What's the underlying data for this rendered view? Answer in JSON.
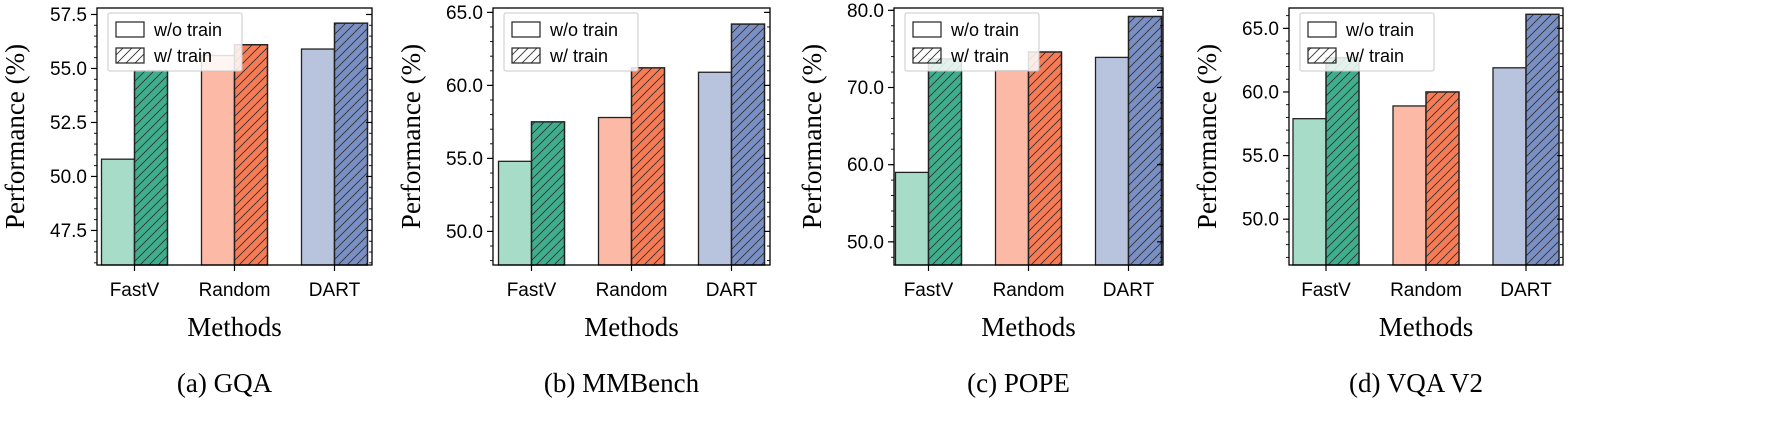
{
  "figure": {
    "categories": [
      "FastV",
      "Random",
      "DART"
    ],
    "legend": [
      "w/o train",
      "w/ train"
    ],
    "ylabel": "Performance (%)",
    "xlabel": "Methods",
    "colors": {
      "FastV": [
        "#a6dcc8",
        "#3fae8c"
      ],
      "Random": [
        "#fcb9a5",
        "#f77b55"
      ],
      "DART": [
        "#b8c3de",
        "#7a8fc4"
      ]
    },
    "legend_position": "upper left",
    "hatch_on_series": "w/ train"
  },
  "chart_data": [
    {
      "type": "bar",
      "caption": "(a) GQA",
      "categories": [
        "FastV",
        "Random",
        "DART"
      ],
      "series": [
        {
          "name": "w/o train",
          "values": [
            50.8,
            55.6,
            55.9
          ]
        },
        {
          "name": "w/ train",
          "values": [
            54.9,
            56.1,
            57.1
          ]
        }
      ],
      "xlabel": "Methods",
      "ylabel": "Performance (%)",
      "ylim": [
        45.9,
        57.8
      ],
      "yticks": [
        "47.5",
        "50.0",
        "52.5",
        "55.0",
        "57.5"
      ],
      "ytick_values": [
        47.5,
        50.0,
        52.5,
        55.0,
        57.5
      ],
      "minor_step": 0.5,
      "legend": "top-left"
    },
    {
      "type": "bar",
      "caption": "(b) MMBench",
      "categories": [
        "FastV",
        "Random",
        "DART"
      ],
      "series": [
        {
          "name": "w/o train",
          "values": [
            54.8,
            57.8,
            60.9
          ]
        },
        {
          "name": "w/ train",
          "values": [
            57.5,
            61.2,
            64.2
          ]
        }
      ],
      "xlabel": "Methods",
      "ylabel": "Performance (%)",
      "ylim": [
        47.7,
        65.3
      ],
      "yticks": [
        "50.0",
        "55.0",
        "60.0",
        "65.0"
      ],
      "ytick_values": [
        50.0,
        55.0,
        60.0,
        65.0
      ],
      "minor_step": 1,
      "legend": "top-left"
    },
    {
      "type": "bar",
      "caption": "(c) POPE",
      "categories": [
        "FastV",
        "Random",
        "DART"
      ],
      "series": [
        {
          "name": "w/o train",
          "values": [
            59.0,
            72.2,
            73.9
          ]
        },
        {
          "name": "w/ train",
          "values": [
            73.7,
            74.6,
            79.2
          ]
        }
      ],
      "xlabel": "Methods",
      "ylabel": "Performance (%)",
      "ylim": [
        47.0,
        80.3
      ],
      "yticks": [
        "50.0",
        "60.0",
        "70.0",
        "80.0"
      ],
      "ytick_values": [
        50.0,
        60.0,
        70.0,
        80.0
      ],
      "minor_step": 2,
      "legend": "top-left"
    },
    {
      "type": "bar",
      "caption": "(d) VQA V2",
      "categories": [
        "FastV",
        "Random",
        "DART"
      ],
      "series": [
        {
          "name": "w/o train",
          "values": [
            57.9,
            58.9,
            61.9
          ]
        },
        {
          "name": "w/ train",
          "values": [
            62.7,
            60.0,
            66.1
          ]
        }
      ],
      "xlabel": "Methods",
      "ylabel": "Performance (%)",
      "ylim": [
        46.4,
        66.6
      ],
      "yticks": [
        "50.0",
        "55.0",
        "60.0",
        "65.0"
      ],
      "ytick_values": [
        50.0,
        55.0,
        60.0,
        65.0
      ],
      "minor_step": 1,
      "legend": "top-left"
    }
  ]
}
